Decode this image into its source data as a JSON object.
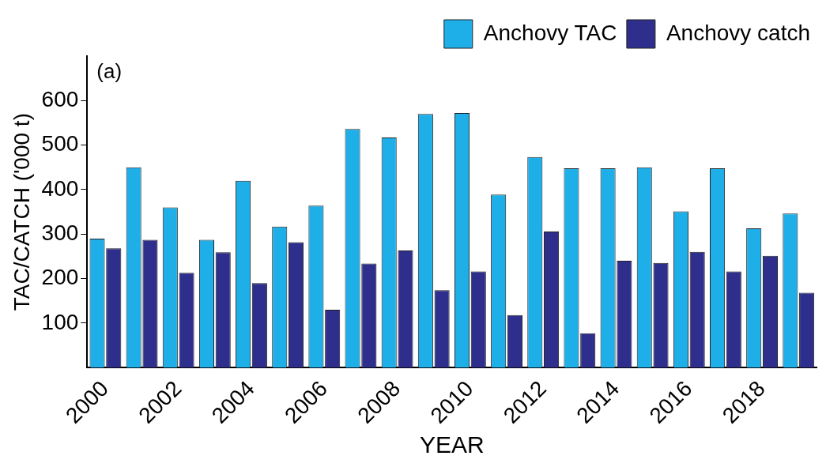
{
  "chart_data": {
    "type": "bar",
    "xlabel": "YEAR",
    "ylabel": "TAC/CATCH ('000 t)",
    "annotations": [
      "(a)"
    ],
    "categories": [
      "2000",
      null,
      "2002",
      null,
      "2004",
      null,
      "2006",
      null,
      "2008",
      null,
      "2010",
      null,
      "2012",
      null,
      "2014",
      null,
      "2016",
      null,
      "2018",
      null
    ],
    "series": [
      {
        "name": "Anchovy TAC",
        "color": "#1eaee8",
        "values": [
          290,
          450,
          360,
          287,
          420,
          317,
          364,
          536,
          517,
          570,
          572,
          389,
          473,
          448,
          448,
          450,
          351,
          448,
          313,
          346
        ]
      },
      {
        "name": "Anchovy catch",
        "color": "#2e2e8c",
        "values": [
          268,
          287,
          213,
          259,
          190,
          282,
          130,
          234,
          263,
          174,
          216,
          118,
          306,
          77,
          240,
          235,
          260,
          216,
          251,
          168
        ]
      }
    ],
    "ylim": [
      0,
      700
    ],
    "yticks": [
      100,
      200,
      300,
      400,
      500,
      600
    ],
    "grid": false,
    "legend": "top right"
  }
}
